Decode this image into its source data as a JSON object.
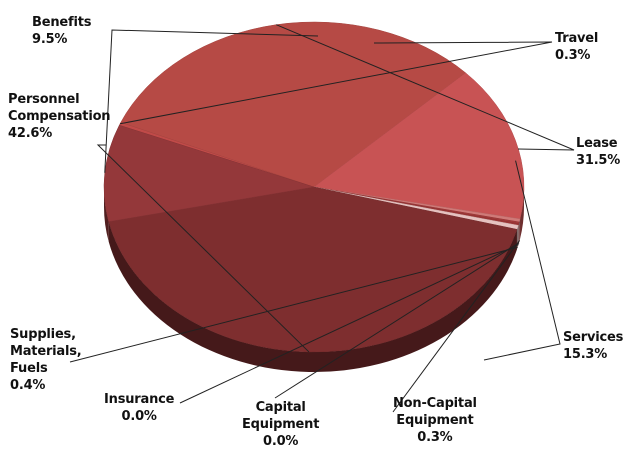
{
  "chart_data": {
    "type": "pie",
    "title": "",
    "legend": "none",
    "slices": [
      {
        "key": "travel",
        "label": "Travel",
        "value": 0.3,
        "pct": "0.3%",
        "color": "#c04a48"
      },
      {
        "key": "lease",
        "label": "Lease",
        "value": 31.5,
        "pct": "31.5%",
        "color": "#b64a45"
      },
      {
        "key": "services",
        "label": "Services",
        "value": 15.3,
        "pct": "15.3%",
        "color": "#c85354"
      },
      {
        "key": "noncap",
        "label": "Non-Capital\nEquipment",
        "value": 0.3,
        "pct": "0.3%",
        "color": "#d07a78"
      },
      {
        "key": "capital",
        "label": "Capital\nEquipment",
        "value": 0.0,
        "pct": "0.0%",
        "color": "#a33a3a"
      },
      {
        "key": "insurance",
        "label": "Insurance",
        "value": 0.0,
        "pct": "0.0%",
        "color": "#9d3636"
      },
      {
        "key": "supplies",
        "label": "Supplies,\nMaterials,\nFuels",
        "value": 0.4,
        "pct": "0.4%",
        "color": "#e6c2c0"
      },
      {
        "key": "personnel",
        "label": "Personnel\nCompensation",
        "value": 42.6,
        "pct": "42.6%",
        "color": "#7e2e2f"
      },
      {
        "key": "benefits",
        "label": "Benefits",
        "value": 9.5,
        "pct": "9.5%",
        "color": "#94383a"
      }
    ]
  }
}
